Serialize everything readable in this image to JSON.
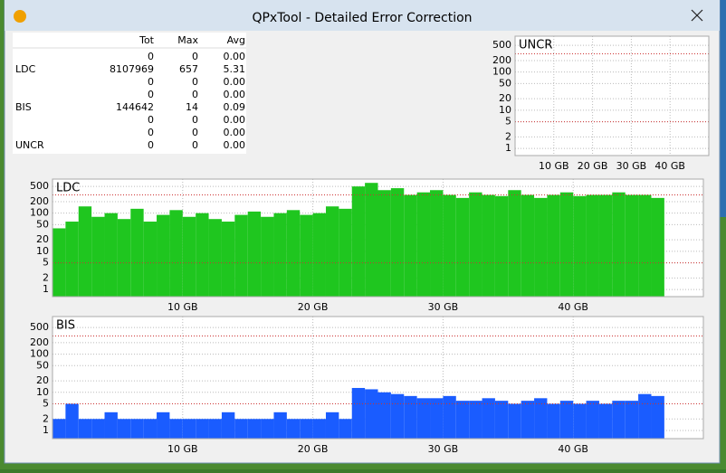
{
  "window": {
    "title": "QPxTool - Detailed Error Correction"
  },
  "table": {
    "header": [
      "Tot",
      "Max",
      "Avg"
    ],
    "rows": [
      [
        "",
        "0",
        "0",
        "0.00"
      ],
      [
        "LDC",
        "8107969",
        "657",
        "5.31"
      ],
      [
        "",
        "0",
        "0",
        "0.00"
      ],
      [
        "",
        "0",
        "0",
        "0.00"
      ],
      [
        "BIS",
        "144642",
        "14",
        "0.09"
      ],
      [
        "",
        "0",
        "0",
        "0.00"
      ],
      [
        "",
        "0",
        "0",
        "0.00"
      ],
      [
        "UNCR",
        "0",
        "0",
        "0.00"
      ]
    ]
  },
  "chart_data": [
    {
      "type": "bar",
      "title": "UNCR",
      "yscale": "log",
      "ylim": [
        0.65,
        870
      ],
      "yticks": [
        1,
        2,
        5,
        10,
        20,
        50,
        100,
        200,
        500
      ],
      "xlim": [
        0,
        50
      ],
      "xticks": [
        {
          "value": 10,
          "label": "10 GB"
        },
        {
          "value": 20,
          "label": "20 GB"
        },
        {
          "value": 30,
          "label": "30 GB"
        },
        {
          "value": 40,
          "label": "40 GB"
        }
      ],
      "grid": true,
      "limits": [
        300,
        5
      ],
      "color": "#1fc61f"
    },
    {
      "type": "bar",
      "title": "LDC",
      "yscale": "log",
      "ylim": [
        0.65,
        780
      ],
      "yticks": [
        1,
        2,
        5,
        10,
        20,
        50,
        100,
        200,
        500
      ],
      "xlim": [
        0,
        50
      ],
      "xticks": [
        {
          "value": 10,
          "label": "10 GB"
        },
        {
          "value": 20,
          "label": "20 GB"
        },
        {
          "value": 30,
          "label": "30 GB"
        },
        {
          "value": 40,
          "label": "40 GB"
        }
      ],
      "grid": true,
      "limits": [
        300,
        5
      ],
      "color": "#1fc61f",
      "x": [
        0,
        1,
        2,
        3,
        4,
        5,
        6,
        7,
        8,
        9,
        10,
        11,
        12,
        13,
        14,
        15,
        16,
        17,
        18,
        19,
        20,
        21,
        22,
        23,
        24,
        25,
        26,
        27,
        28,
        29,
        30,
        31,
        32,
        33,
        34,
        35,
        36,
        37,
        38,
        39,
        40,
        41,
        42,
        43,
        44,
        45,
        46
      ],
      "values": [
        40,
        60,
        150,
        80,
        100,
        70,
        130,
        60,
        90,
        120,
        80,
        100,
        70,
        60,
        90,
        110,
        80,
        100,
        120,
        90,
        100,
        150,
        130,
        500,
        620,
        400,
        450,
        300,
        350,
        400,
        300,
        250,
        350,
        300,
        280,
        400,
        300,
        250,
        300,
        350,
        280,
        300,
        300,
        350,
        300,
        300,
        250
      ]
    },
    {
      "type": "bar",
      "title": "BIS",
      "yscale": "log",
      "ylim": [
        0.61,
        970
      ],
      "yticks": [
        1,
        2,
        5,
        10,
        20,
        50,
        100,
        200,
        500
      ],
      "xlim": [
        0,
        50
      ],
      "xticks": [
        {
          "value": 10,
          "label": "10 GB"
        },
        {
          "value": 20,
          "label": "20 GB"
        },
        {
          "value": 30,
          "label": "30 GB"
        },
        {
          "value": 40,
          "label": "40 GB"
        }
      ],
      "grid": true,
      "limits": [
        300,
        5
      ],
      "color": "#1a5cff",
      "x": [
        0,
        1,
        2,
        3,
        4,
        5,
        6,
        7,
        8,
        9,
        10,
        11,
        12,
        13,
        14,
        15,
        16,
        17,
        18,
        19,
        20,
        21,
        22,
        23,
        24,
        25,
        26,
        27,
        28,
        29,
        30,
        31,
        32,
        33,
        34,
        35,
        36,
        37,
        38,
        39,
        40,
        41,
        42,
        43,
        44,
        45,
        46
      ],
      "values": [
        2,
        5,
        2,
        2,
        3,
        2,
        2,
        2,
        3,
        2,
        2,
        2,
        2,
        3,
        2,
        2,
        2,
        3,
        2,
        2,
        2,
        3,
        2,
        13,
        12,
        10,
        9,
        8,
        7,
        7,
        8,
        6,
        6,
        7,
        6,
        5,
        6,
        7,
        5,
        6,
        5,
        6,
        5,
        6,
        6,
        9,
        8
      ]
    }
  ]
}
